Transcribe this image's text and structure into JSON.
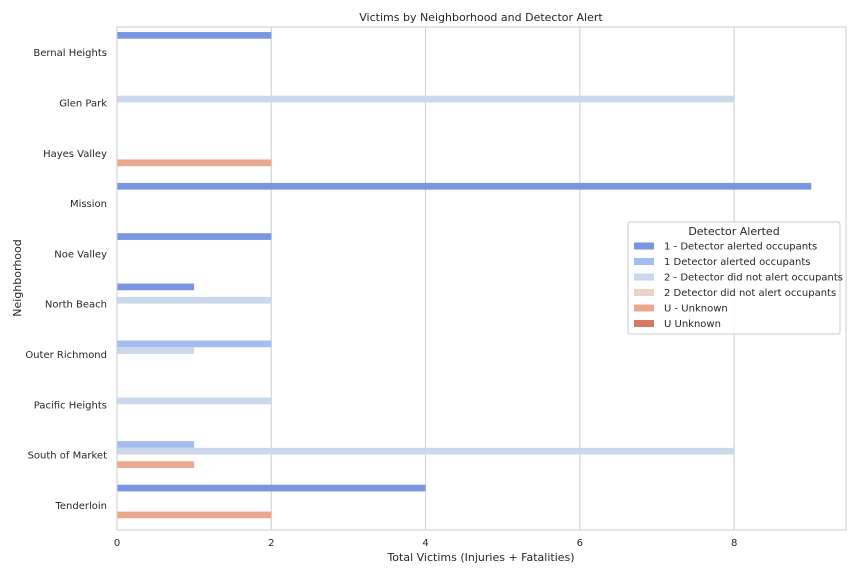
{
  "chart_data": {
    "type": "bar",
    "orientation": "horizontal",
    "title": "Victims by Neighborhood and Detector Alert",
    "xlabel": "Total Victims (Injuries + Fatalities)",
    "ylabel": "Neighborhood",
    "xlim": [
      0,
      9.45
    ],
    "xticks": [
      0,
      2,
      4,
      6,
      8
    ],
    "grid": true,
    "legend": {
      "title": "Detector Alerted",
      "placement": "center-right"
    },
    "categories": [
      "Bernal Heights",
      "Glen Park",
      "Hayes Valley",
      "Mission",
      "Noe Valley",
      "North Beach",
      "Outer Richmond",
      "Pacific Heights",
      "South of Market",
      "Tenderloin"
    ],
    "series": [
      {
        "name": "1 - Detector alerted occupants",
        "color": "#7b96e0",
        "values": [
          2,
          0,
          0,
          9,
          2,
          1,
          0,
          0,
          0,
          4
        ]
      },
      {
        "name": "1 Detector alerted occupants",
        "color": "#a3bdf0",
        "values": [
          0,
          0,
          0,
          0,
          0,
          0,
          2,
          0,
          1,
          0
        ]
      },
      {
        "name": "2 - Detector did not alert occupants",
        "color": "#cbd7ea",
        "values": [
          0,
          8,
          0,
          0,
          0,
          2,
          1,
          2,
          8,
          0
        ]
      },
      {
        "name": "2 Detector did not alert occupants",
        "color": "#ecd3c9",
        "values": [
          0,
          0,
          0,
          0,
          0,
          0,
          0,
          0,
          0,
          0
        ]
      },
      {
        "name": "U - Unknown",
        "color": "#eaa98e",
        "values": [
          0,
          0,
          2,
          0,
          0,
          0,
          0,
          0,
          1,
          2
        ]
      },
      {
        "name": "U Unknown",
        "color": "#d47a64",
        "values": [
          0,
          0,
          0,
          0,
          0,
          0,
          0,
          0,
          0,
          0
        ]
      }
    ]
  }
}
